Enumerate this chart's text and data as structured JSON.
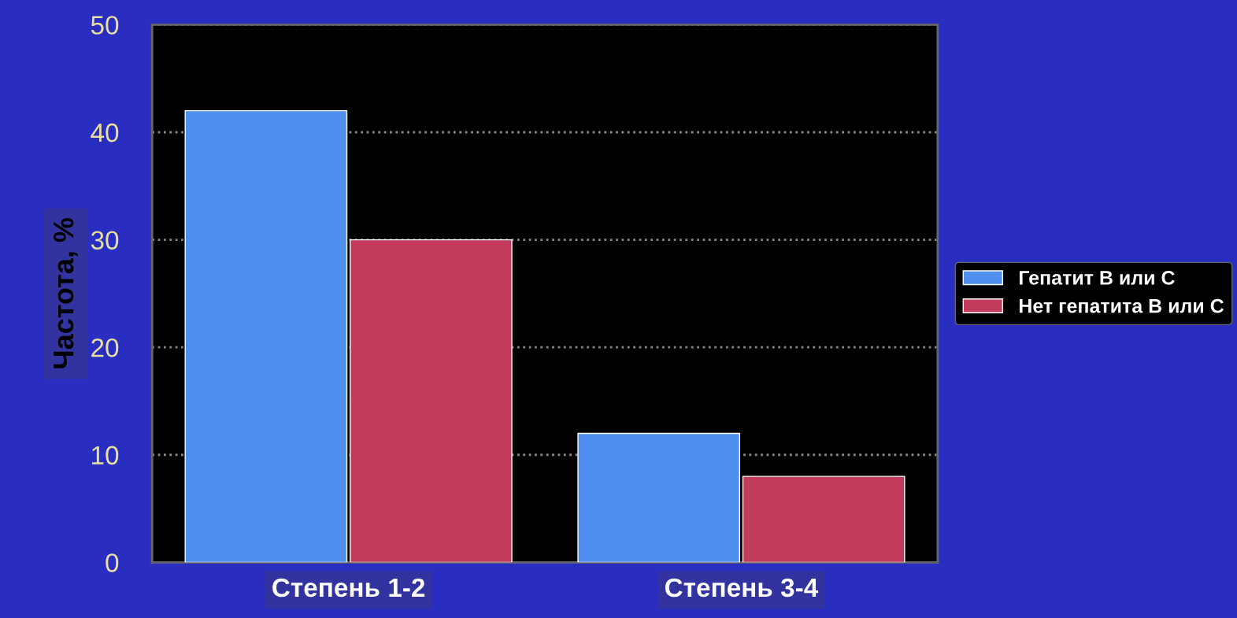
{
  "chart_data": {
    "type": "bar",
    "ylabel": "Частота, %",
    "categories": [
      "Степень 1-2",
      "Степень 3-4"
    ],
    "series": [
      {
        "name": "Гепатит В или С",
        "color": "#4f8ff0",
        "values": [
          42,
          12
        ]
      },
      {
        "name": "Нет гепатита В или С",
        "color": "#c23a5c",
        "values": [
          30,
          8
        ]
      }
    ],
    "ylim": [
      0,
      50
    ],
    "yticks": [
      0,
      10,
      20,
      30,
      40,
      50
    ],
    "grid": "y",
    "legend": "right"
  }
}
